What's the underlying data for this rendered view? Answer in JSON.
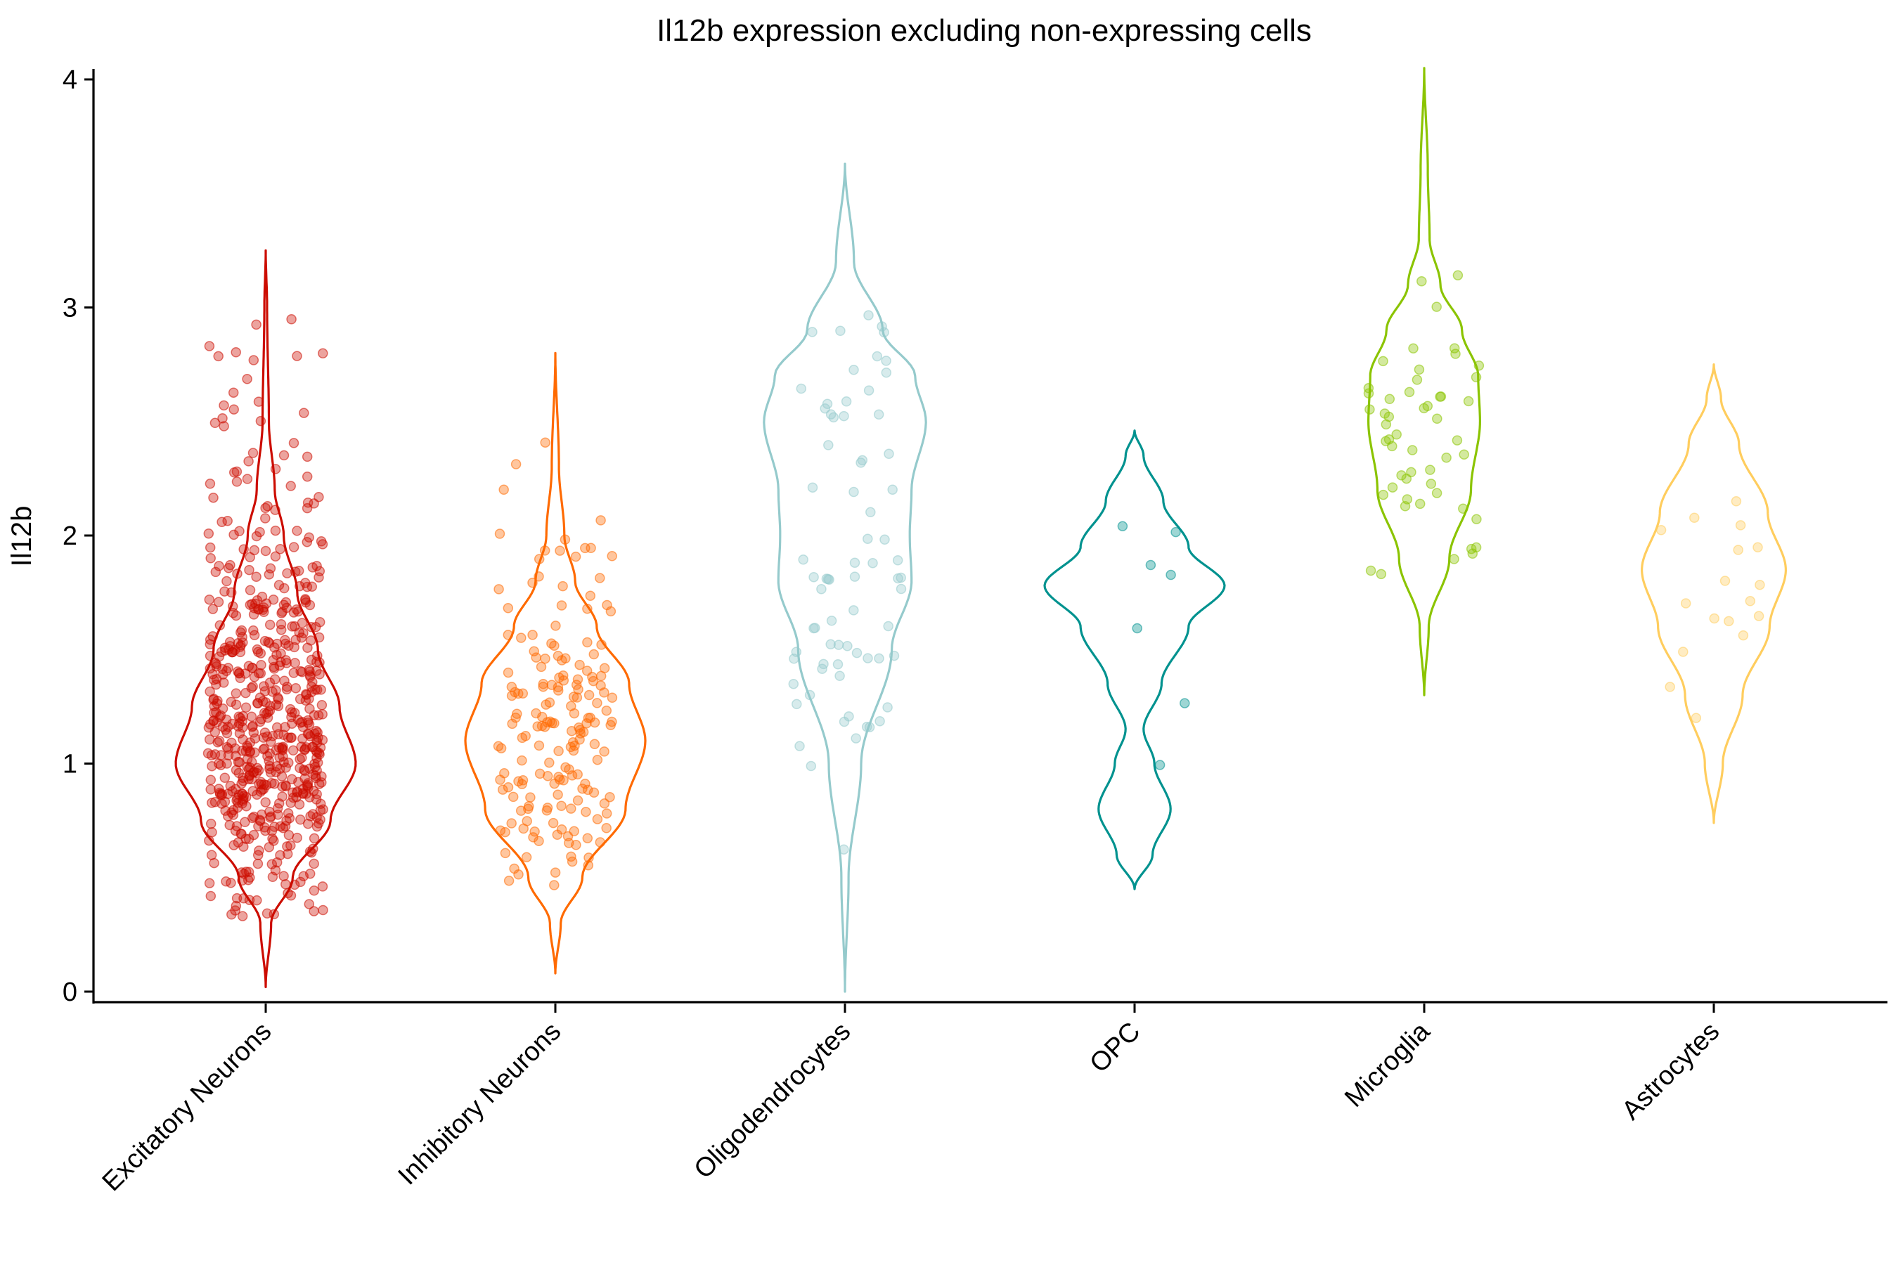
{
  "chart_data": {
    "type": "violin",
    "title": "Il12b expression excluding non-expressing cells",
    "xlabel": "",
    "ylabel": "Il12b",
    "ylim": [
      0,
      4
    ],
    "yticks": [
      "0",
      "1",
      "2",
      "3",
      "4"
    ],
    "grid": false,
    "legend": "none",
    "categories": [
      "Excitatory Neurons",
      "Inhibitory Neurons",
      "Oligodendrocytes",
      "OPC",
      "Microglia",
      "Astrocytes"
    ],
    "series": [
      {
        "category": "Excitatory Neurons",
        "color": "#cc0c00",
        "range": [
          0.02,
          3.25
        ],
        "density_profile": [
          [
            0.02,
            0.0
          ],
          [
            0.3,
            0.06
          ],
          [
            0.5,
            0.3
          ],
          [
            0.75,
            0.72
          ],
          [
            1.0,
            1.0
          ],
          [
            1.25,
            0.82
          ],
          [
            1.5,
            0.58
          ],
          [
            1.75,
            0.35
          ],
          [
            2.0,
            0.2
          ],
          [
            2.2,
            0.1
          ],
          [
            2.5,
            0.035
          ],
          [
            3.0,
            0.015
          ],
          [
            3.25,
            0.0
          ]
        ],
        "n_points": 620,
        "points_range": [
          0.3,
          2.97
        ]
      },
      {
        "category": "Inhibitory Neurons",
        "color": "#ff6a00",
        "range": [
          0.08,
          2.8
        ],
        "density_profile": [
          [
            0.08,
            0.0
          ],
          [
            0.3,
            0.06
          ],
          [
            0.5,
            0.3
          ],
          [
            0.8,
            0.78
          ],
          [
            1.1,
            1.0
          ],
          [
            1.35,
            0.82
          ],
          [
            1.6,
            0.46
          ],
          [
            1.8,
            0.22
          ],
          [
            2.0,
            0.1
          ],
          [
            2.3,
            0.04
          ],
          [
            2.8,
            0.0
          ]
        ],
        "n_points": 180,
        "points_range": [
          0.44,
          2.44
        ]
      },
      {
        "category": "Oligodendrocytes",
        "color": "#95cacc",
        "range": [
          0.0,
          3.63
        ],
        "density_profile": [
          [
            0.0,
            0.0
          ],
          [
            0.5,
            0.04
          ],
          [
            1.0,
            0.18
          ],
          [
            1.5,
            0.52
          ],
          [
            1.8,
            0.74
          ],
          [
            2.0,
            0.72
          ],
          [
            2.2,
            0.74
          ],
          [
            2.5,
            0.9
          ],
          [
            2.7,
            0.78
          ],
          [
            2.9,
            0.42
          ],
          [
            3.2,
            0.1
          ],
          [
            3.63,
            0.0
          ]
        ],
        "n_points": 72,
        "points_range": [
          0.55,
          3.05
        ]
      },
      {
        "category": "OPC",
        "color": "#00928f",
        "range": [
          0.45,
          2.46
        ],
        "density_profile": [
          [
            0.45,
            0.0
          ],
          [
            0.6,
            0.2
          ],
          [
            0.8,
            0.4
          ],
          [
            1.0,
            0.22
          ],
          [
            1.15,
            0.1
          ],
          [
            1.35,
            0.3
          ],
          [
            1.6,
            0.6
          ],
          [
            1.78,
            1.0
          ],
          [
            1.95,
            0.6
          ],
          [
            2.15,
            0.32
          ],
          [
            2.35,
            0.1
          ],
          [
            2.46,
            0.0
          ]
        ],
        "n_points": 7,
        "points_range": [
          0.82,
          2.09
        ]
      },
      {
        "category": "Microglia",
        "color": "#8bc400",
        "range": [
          1.3,
          4.05
        ],
        "density_profile": [
          [
            1.3,
            0.0
          ],
          [
            1.6,
            0.05
          ],
          [
            1.9,
            0.28
          ],
          [
            2.2,
            0.52
          ],
          [
            2.5,
            0.62
          ],
          [
            2.7,
            0.6
          ],
          [
            2.9,
            0.42
          ],
          [
            3.1,
            0.18
          ],
          [
            3.3,
            0.06
          ],
          [
            3.6,
            0.04
          ],
          [
            4.05,
            0.0
          ]
        ],
        "n_points": 52,
        "points_range": [
          1.8,
          3.55
        ]
      },
      {
        "category": "Astrocytes",
        "color": "#ffcd5e",
        "range": [
          0.74,
          2.75
        ],
        "density_profile": [
          [
            0.74,
            0.0
          ],
          [
            1.0,
            0.1
          ],
          [
            1.3,
            0.32
          ],
          [
            1.6,
            0.62
          ],
          [
            1.85,
            0.8
          ],
          [
            2.1,
            0.6
          ],
          [
            2.4,
            0.28
          ],
          [
            2.6,
            0.08
          ],
          [
            2.75,
            0.0
          ]
        ],
        "n_points": 17,
        "points_range": [
          1.19,
          2.31
        ]
      }
    ]
  }
}
